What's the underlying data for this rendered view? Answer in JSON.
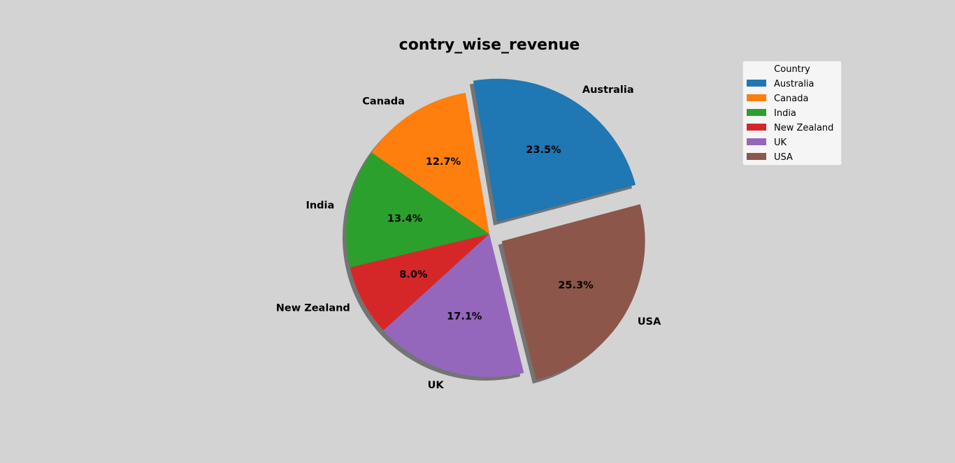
{
  "chart_data": {
    "type": "pie",
    "title": "contry_wise_revenue",
    "categories": [
      "Australia",
      "Canada",
      "India",
      "New Zealand",
      "UK",
      "USA"
    ],
    "values": [
      23.5,
      12.7,
      13.4,
      8.0,
      17.1,
      25.3
    ],
    "value_labels": [
      "23.5%",
      "12.7%",
      "13.4%",
      "8.0%",
      "17.1%",
      "25.3%"
    ],
    "colors": [
      "#1f77b4",
      "#ff7f0e",
      "#2ca02c",
      "#d62728",
      "#9467bd",
      "#8c564b"
    ],
    "explode": [
      0.1,
      0,
      0,
      0,
      0,
      0.1
    ],
    "shadow": true,
    "legend": {
      "title": "Country",
      "placement": "top-right",
      "entries": [
        "Australia",
        "Canada",
        "India",
        "New Zealand",
        "UK",
        "USA"
      ]
    },
    "background_color": "#d3d3d3"
  }
}
